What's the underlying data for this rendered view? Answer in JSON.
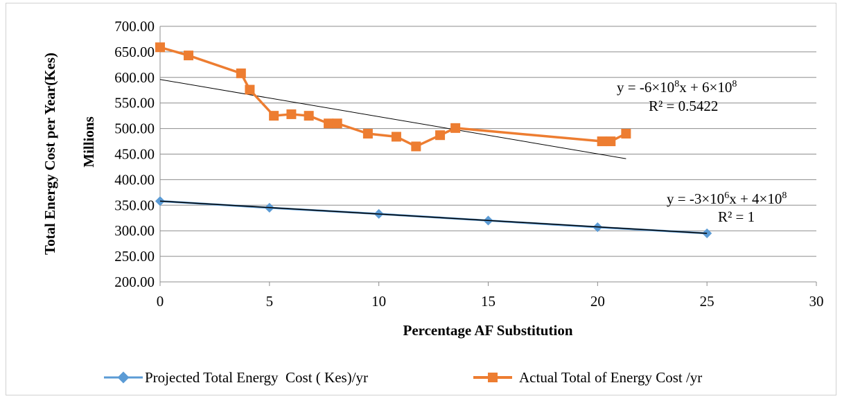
{
  "chart_data": {
    "type": "line",
    "title": "",
    "xlabel": "Percentage AF Substitution",
    "ylabel": "Total Energy Cost per Year(Kes)",
    "yunit": "Millions",
    "xlim": [
      0,
      30
    ],
    "ylim": [
      200,
      700
    ],
    "x_ticks": [
      "0",
      "5",
      "10",
      "15",
      "20",
      "25",
      "30"
    ],
    "y_ticks": [
      "200.00",
      "250.00",
      "300.00",
      "350.00",
      "400.00",
      "450.00",
      "500.00",
      "550.00",
      "600.00",
      "650.00",
      "700.00"
    ],
    "grid": "horizontal",
    "legend": "bottom",
    "series": [
      {
        "name": "Projected Total Energy  Cost ( Kes)/yr",
        "color": "#5b9bd5",
        "marker": "diamond",
        "points": [
          [
            0,
            358
          ],
          [
            5,
            345
          ],
          [
            10,
            333
          ],
          [
            15,
            320
          ],
          [
            20,
            307
          ],
          [
            25,
            295
          ]
        ]
      },
      {
        "name": "Actual Total of Energy Cost /yr",
        "color": "#ed7d31",
        "marker": "square",
        "points": [
          [
            0,
            659
          ],
          [
            1.3,
            643
          ],
          [
            3.7,
            608
          ],
          [
            4.1,
            576
          ],
          [
            5.2,
            525
          ],
          [
            6,
            528
          ],
          [
            6.8,
            525
          ],
          [
            7.7,
            510
          ],
          [
            8.1,
            510
          ],
          [
            9.5,
            490
          ],
          [
            10.8,
            484
          ],
          [
            11.7,
            465
          ],
          [
            12.8,
            487
          ],
          [
            13.5,
            501
          ],
          [
            20.2,
            475
          ],
          [
            20.6,
            475
          ],
          [
            21.3,
            490
          ]
        ]
      }
    ],
    "trendlines": [
      {
        "x": [
          0,
          21.3
        ],
        "y": [
          596,
          441
        ],
        "color": "#000000"
      },
      {
        "x": [
          0,
          25
        ],
        "y": [
          358,
          295
        ],
        "color": "#000000"
      }
    ],
    "annotations": [
      {
        "main": "y = -6×10",
        "sup1": "8",
        "mid": "x + 6×10",
        "sup2": "8",
        "r2": "R² = 0.5422"
      },
      {
        "main": "y = -3×10",
        "sup1": "6",
        "mid": "x + 4×10",
        "sup2": "8",
        "r2": "R² = 1"
      }
    ]
  }
}
